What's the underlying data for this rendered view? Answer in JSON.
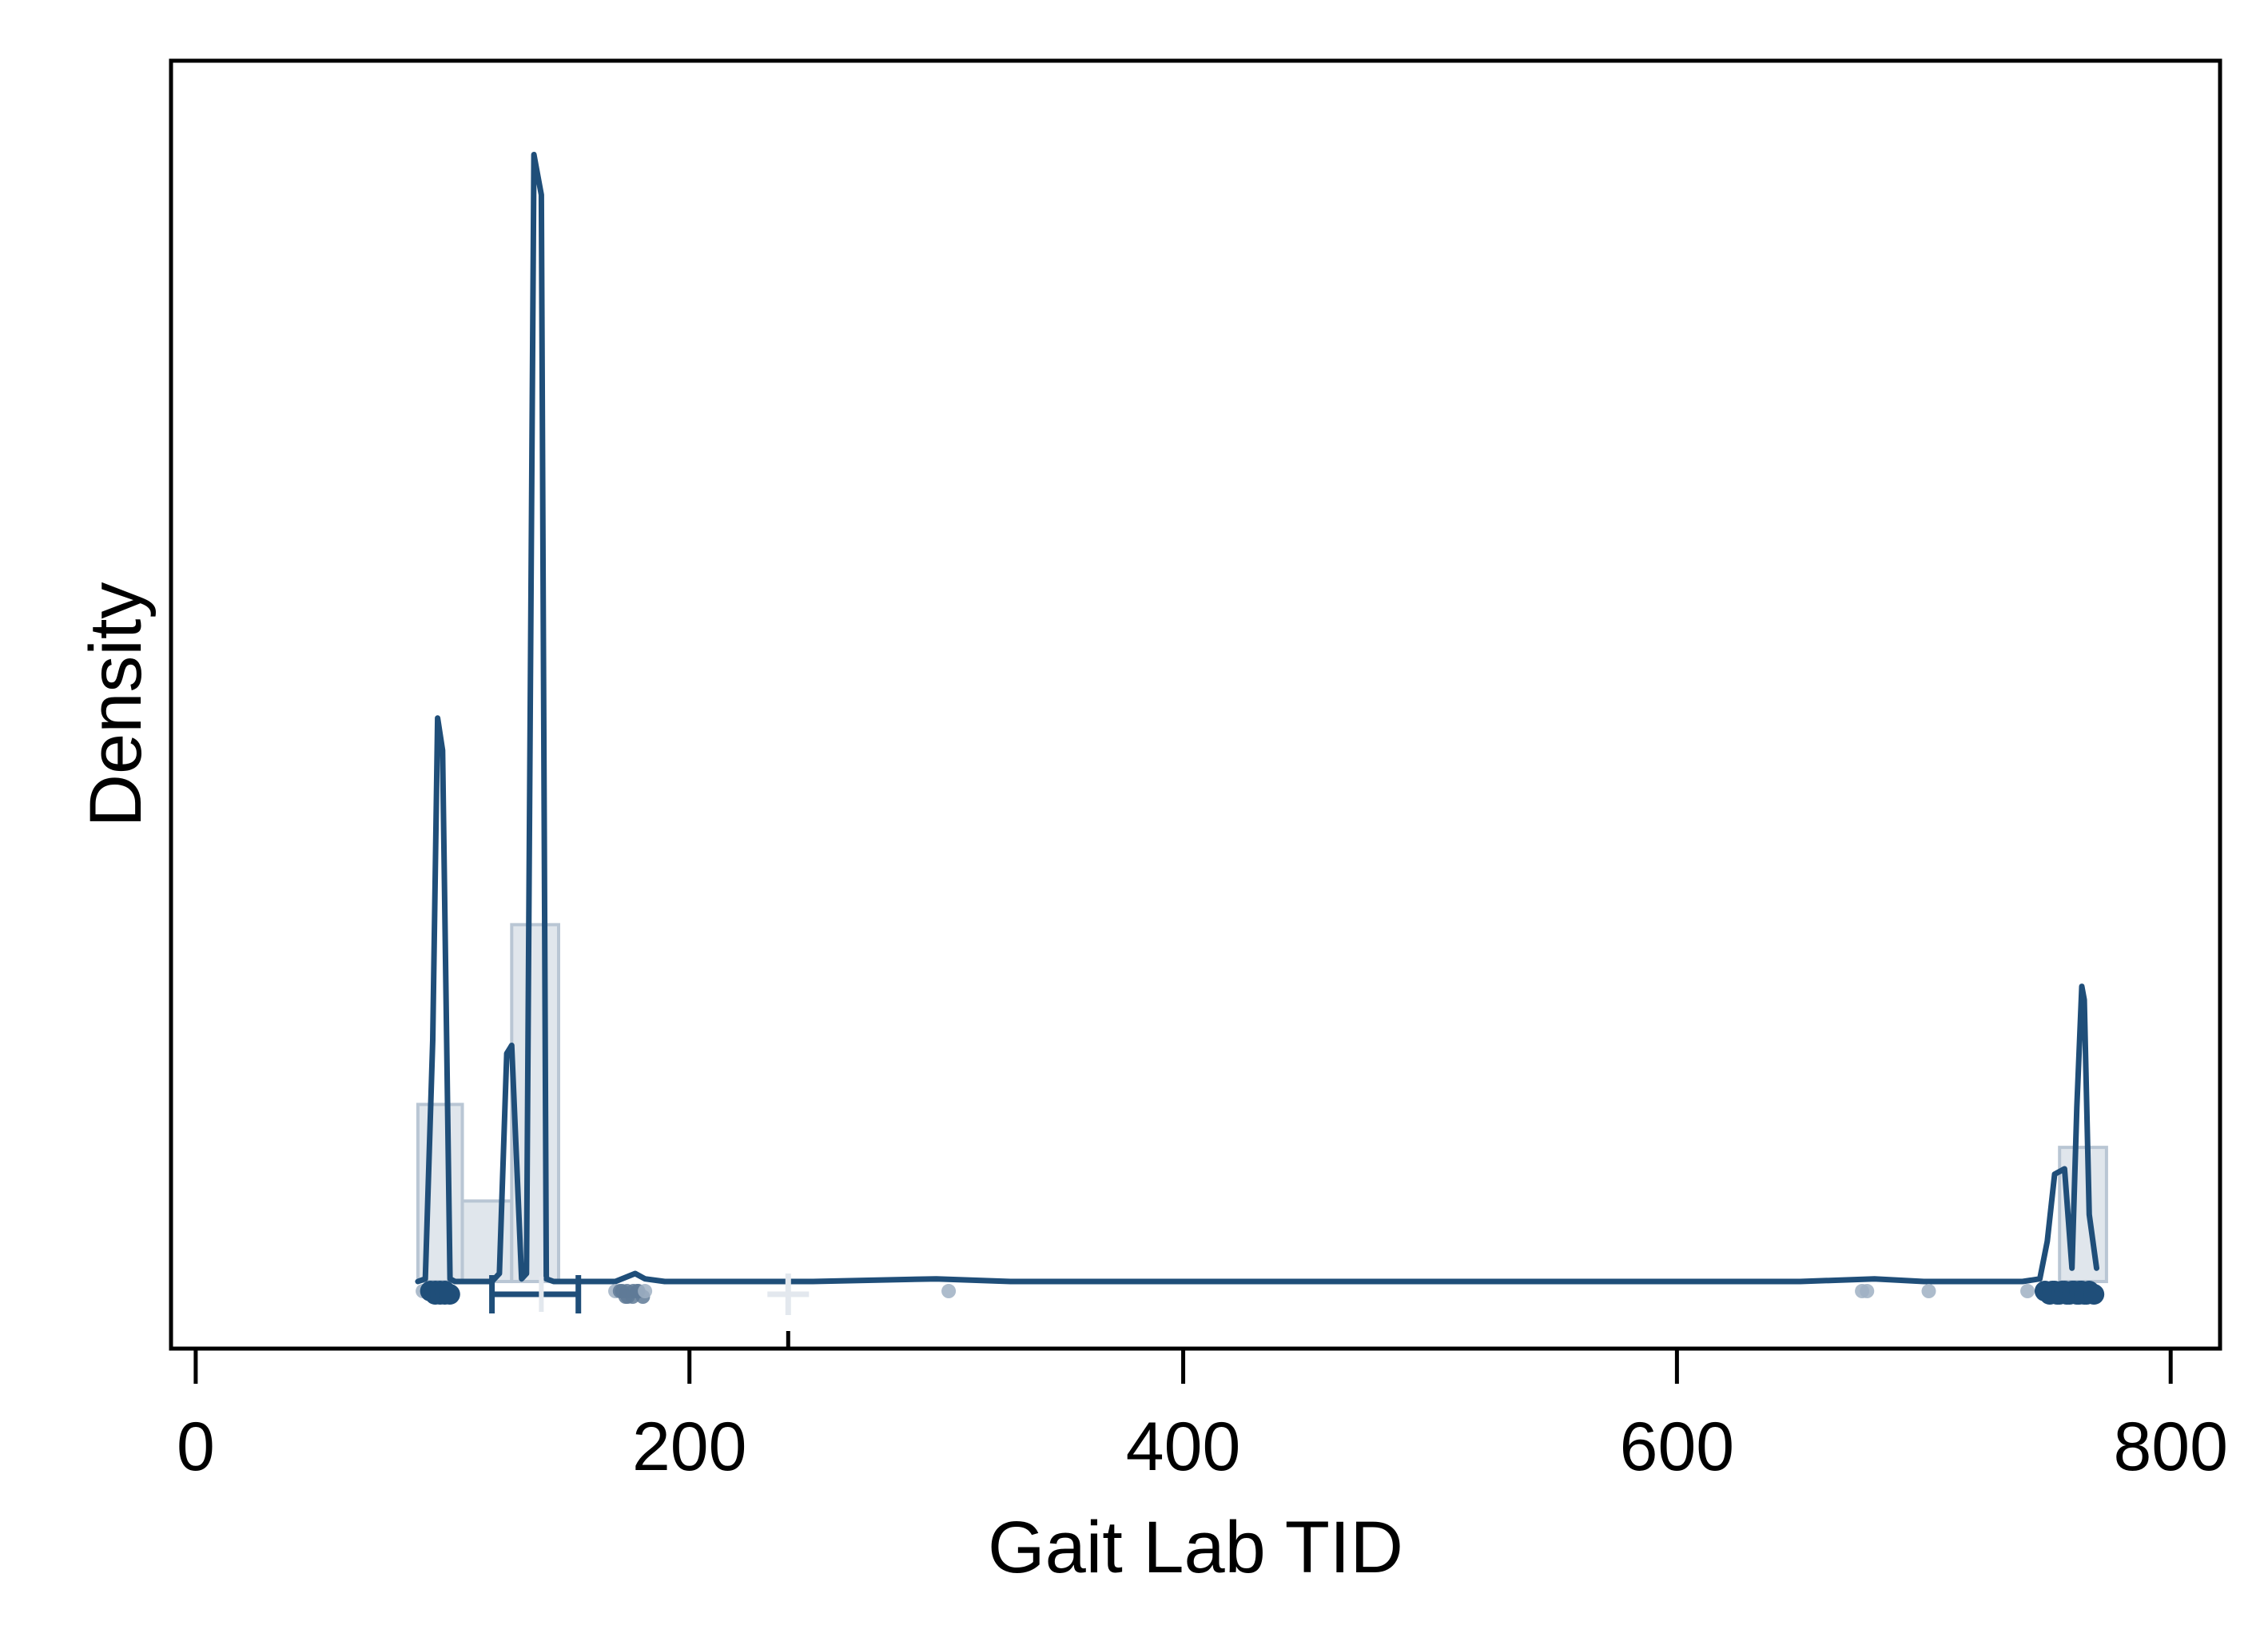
{
  "chart_data": {
    "type": "histogram-density",
    "xlabel": "Gait Lab TID",
    "ylabel": "Density",
    "xlim": [
      -10,
      820
    ],
    "ylim": [
      -0.0025,
      0.0455
    ],
    "x_ticks": [
      0,
      200,
      400,
      600,
      800
    ],
    "x_tick_labels": [
      "0",
      "200",
      "400",
      "600",
      "800"
    ],
    "y_ticks_shown": false,
    "grid": false,
    "legend": "none",
    "colors": {
      "line": "#1f4e79",
      "bars_fill": "#dde3ea",
      "bars_stroke": "#b9c6d4",
      "points_light": "#9fb0c3",
      "mean_marker": "#e3e8ee"
    },
    "histogram": {
      "bins": [
        {
          "x0": 90,
          "x1": 108,
          "density": 0.0066
        },
        {
          "x0": 108,
          "x1": 128,
          "density": 0.003
        },
        {
          "x0": 128,
          "x1": 147,
          "density": 0.0133
        },
        {
          "x0": 755,
          "x1": 774,
          "density": 0.005
        }
      ]
    },
    "density_curve": {
      "x": [
        90,
        93,
        96,
        98,
        100,
        103,
        105,
        110,
        115,
        120,
        123,
        126,
        128,
        132,
        134,
        137,
        140,
        142,
        145,
        150,
        160,
        170,
        178,
        182,
        190,
        250,
        300,
        330,
        500,
        650,
        680,
        700,
        740,
        747,
        750,
        753,
        757,
        760,
        762,
        764,
        765,
        767,
        770
      ],
      "y": [
        0,
        0.0001,
        0.009,
        0.021,
        0.0198,
        0.0001,
        0,
        0,
        0,
        0,
        0.0003,
        0.0085,
        0.0088,
        0.0001,
        0.0003,
        0.042,
        0.0405,
        0.0001,
        0,
        0,
        0,
        0,
        0.0003,
        0.0001,
        0,
        0,
        0.0001,
        0,
        0,
        0,
        0.0001,
        0,
        0,
        0.0001,
        0.0015,
        0.004,
        0.0042,
        0.0005,
        0.0065,
        0.011,
        0.0105,
        0.0025,
        0.0005
      ]
    },
    "points": [
      {
        "x": 92,
        "n": 1
      },
      {
        "x": 98,
        "n": 10
      },
      {
        "x": 100,
        "n": 10
      },
      {
        "x": 170,
        "n": 1
      },
      {
        "x": 173,
        "n": 2
      },
      {
        "x": 175,
        "n": 3
      },
      {
        "x": 177,
        "n": 3
      },
      {
        "x": 180,
        "n": 2
      },
      {
        "x": 182,
        "n": 1
      },
      {
        "x": 305,
        "n": 1
      },
      {
        "x": 675,
        "n": 1
      },
      {
        "x": 677,
        "n": 1
      },
      {
        "x": 702,
        "n": 1
      },
      {
        "x": 742,
        "n": 1
      },
      {
        "x": 752,
        "n": 10
      },
      {
        "x": 755,
        "n": 10
      },
      {
        "x": 760,
        "n": 10
      },
      {
        "x": 763,
        "n": 10
      },
      {
        "x": 766,
        "n": 10
      }
    ],
    "interval": {
      "low": 120,
      "mid": 140,
      "high": 155
    },
    "mean_marker_x": 240,
    "axis_mark_x": 240
  }
}
